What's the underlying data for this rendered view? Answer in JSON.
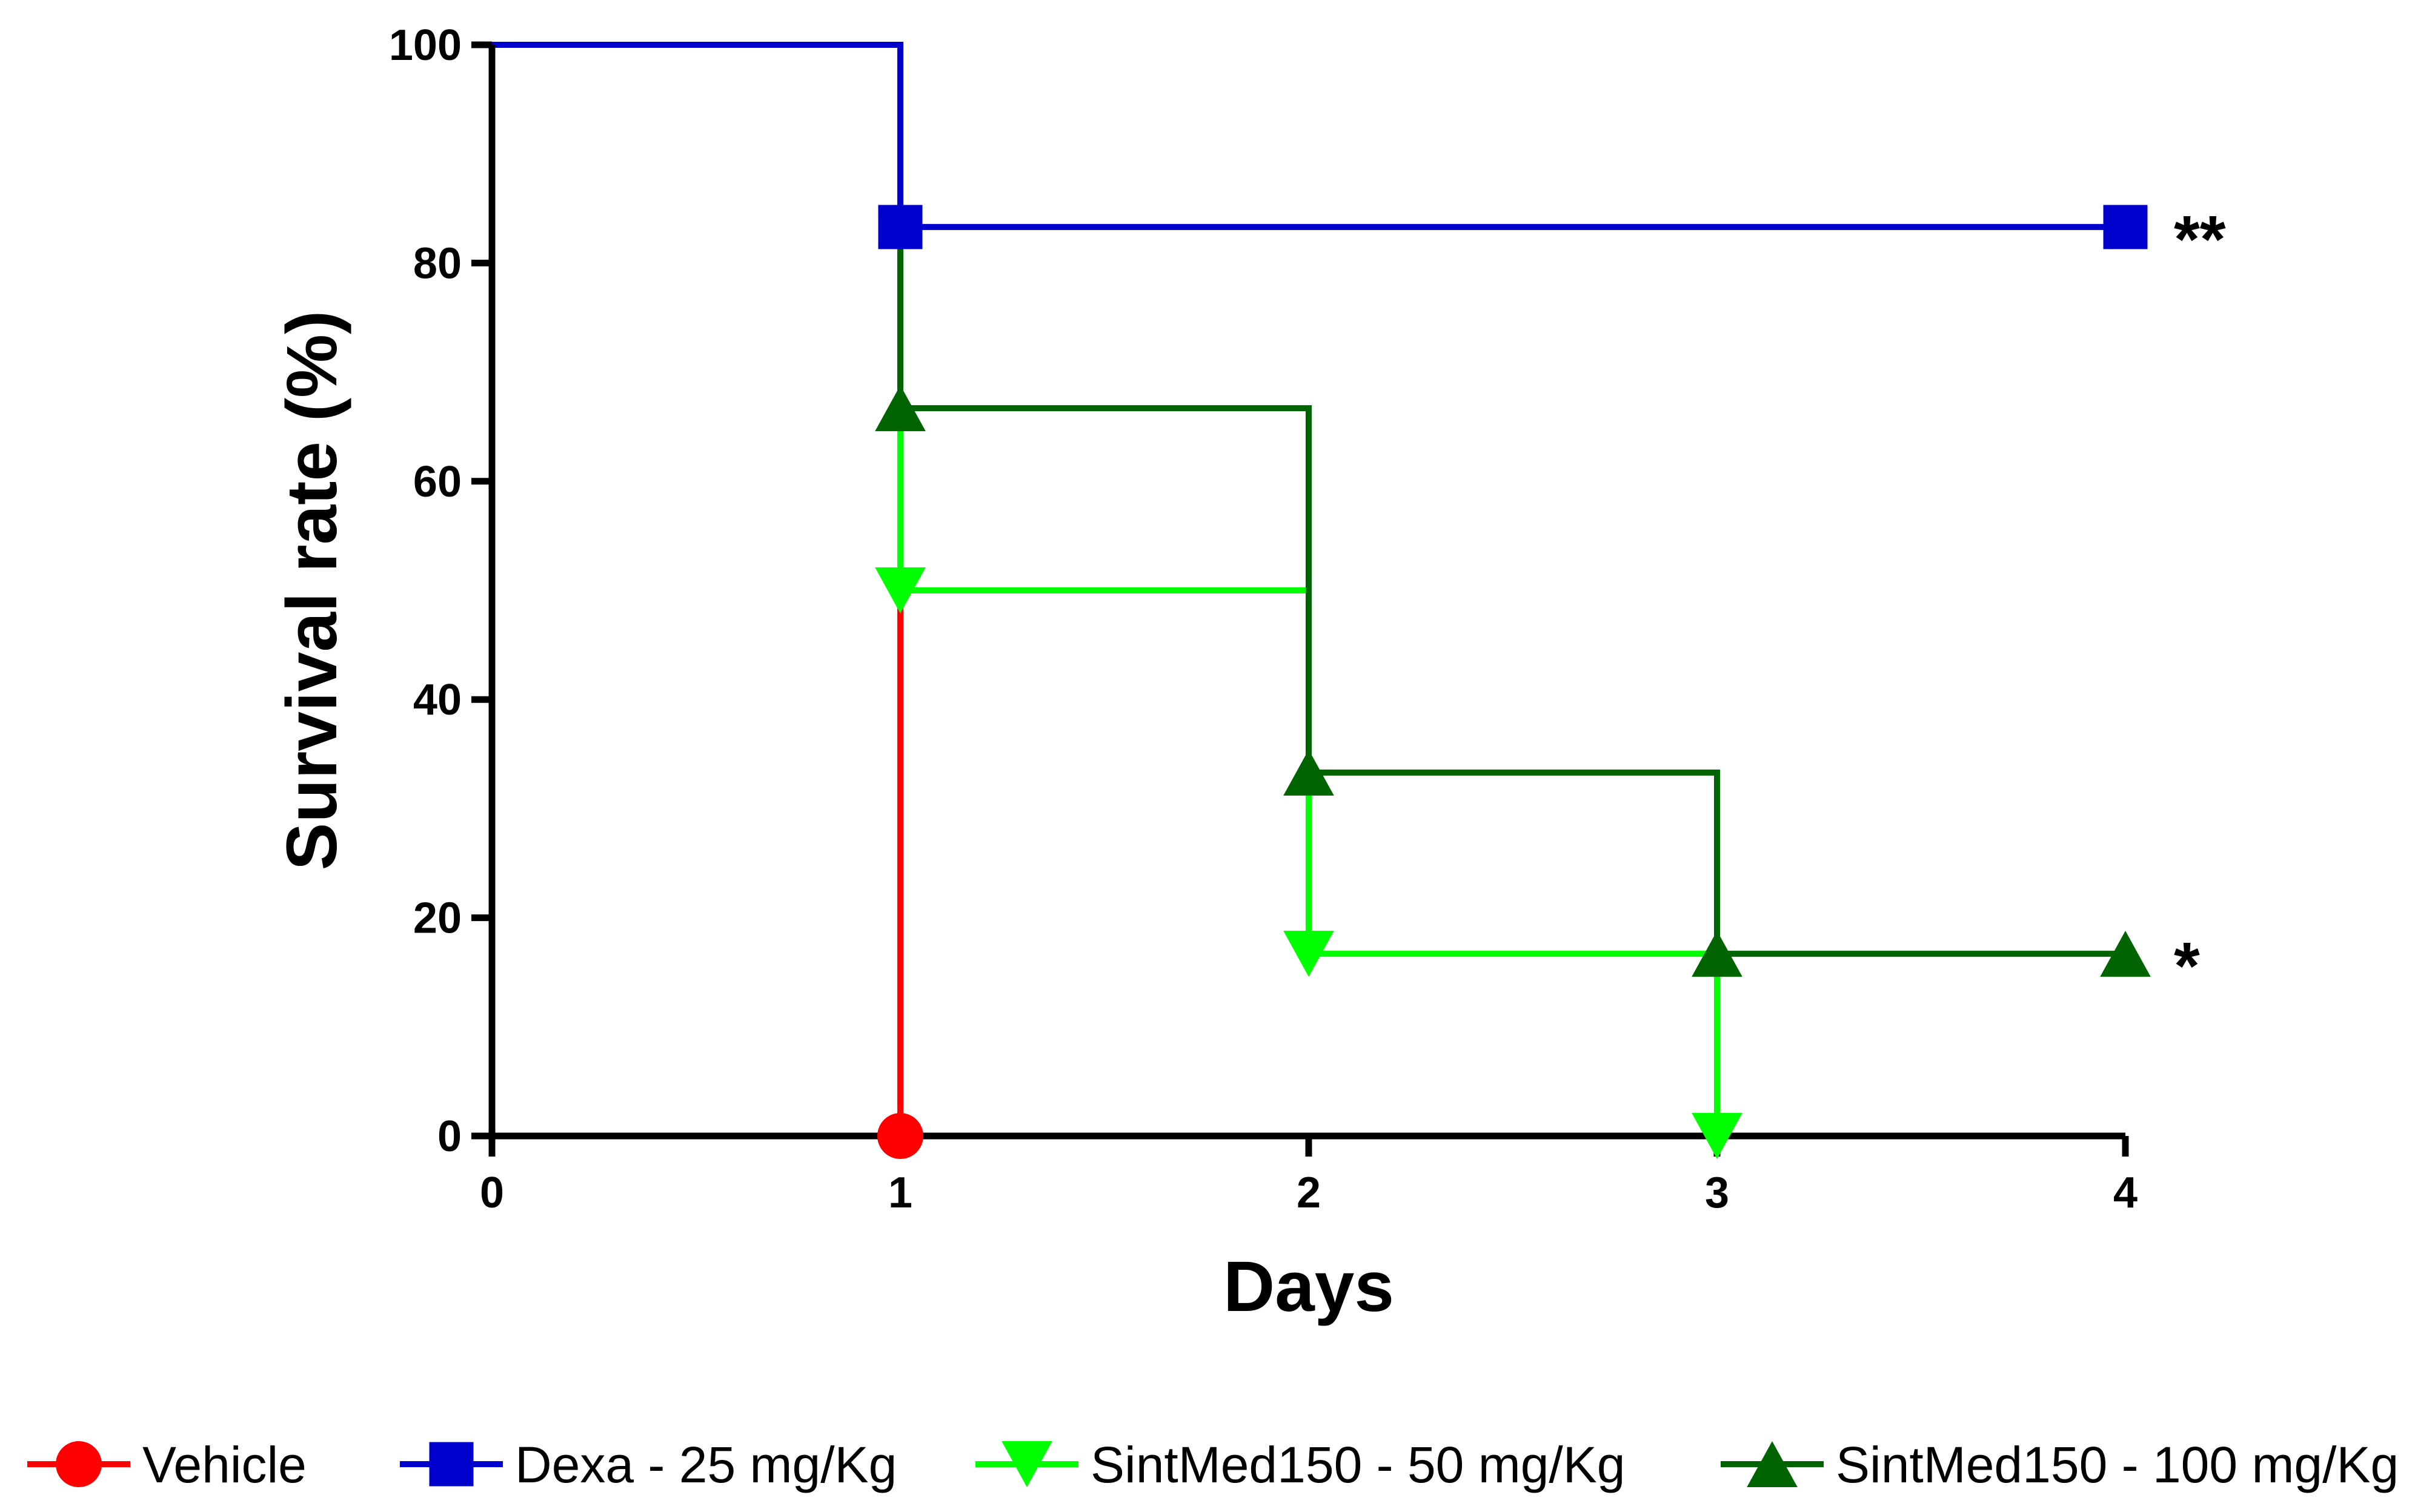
{
  "chart_data": {
    "type": "line",
    "subtype": "kaplan-meier-step",
    "title": "",
    "xlabel": "Days",
    "ylabel": "Survival rate (%)",
    "xlim": [
      0,
      4
    ],
    "ylim": [
      0,
      100
    ],
    "xticks": [
      "0",
      "1",
      "2",
      "3",
      "4"
    ],
    "yticks": [
      "0",
      "20",
      "40",
      "60",
      "80",
      "100"
    ],
    "grid": false,
    "legend_position": "bottom",
    "series": [
      {
        "name": "Vehicle",
        "color": "#ff0000",
        "marker": "circle",
        "steps": [
          [
            0,
            100
          ],
          [
            1,
            0
          ]
        ],
        "points": [
          [
            1,
            0
          ]
        ]
      },
      {
        "name": "Dexa - 25 mg/Kg",
        "color": "#0000cc",
        "marker": "square",
        "steps": [
          [
            0,
            100
          ],
          [
            1,
            83.3
          ],
          [
            4,
            83.3
          ]
        ],
        "points": [
          [
            1,
            83.3
          ],
          [
            4,
            83.3
          ]
        ]
      },
      {
        "name": "SintMed150 - 50 mg/Kg",
        "color": "#00ff00",
        "marker": "triangle-down",
        "steps": [
          [
            0,
            100
          ],
          [
            1,
            50
          ],
          [
            2,
            16.7
          ],
          [
            3,
            0
          ]
        ],
        "points": [
          [
            1,
            50
          ],
          [
            2,
            16.7
          ],
          [
            3,
            0
          ]
        ]
      },
      {
        "name": "SintMed150 - 100 mg/Kg",
        "color": "#006400",
        "marker": "triangle-up",
        "steps": [
          [
            0,
            100
          ],
          [
            1,
            66.7
          ],
          [
            2,
            33.3
          ],
          [
            3,
            16.7
          ],
          [
            4,
            16.7
          ]
        ],
        "points": [
          [
            1,
            66.7
          ],
          [
            2,
            33.3
          ],
          [
            3,
            16.7
          ],
          [
            4,
            16.7
          ]
        ]
      }
    ],
    "annotations": [
      {
        "text": "**",
        "x": 4,
        "y": 83.3
      },
      {
        "text": "*",
        "x": 4,
        "y": 16.7
      }
    ]
  }
}
